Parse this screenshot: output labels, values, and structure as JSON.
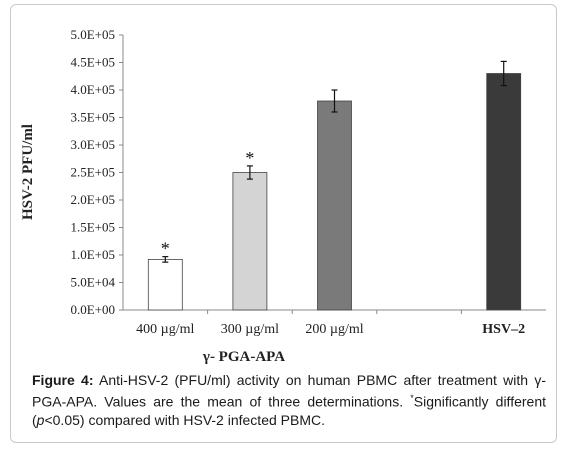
{
  "chart_data": {
    "type": "bar",
    "ylabel": "HSV-2 PFU/ml",
    "xlabel": "γ- PGA-APA",
    "ylim": [
      0,
      500000
    ],
    "yticks": [
      "0.0E+00",
      "5.0E+04",
      "1.0E+05",
      "1.5E+05",
      "2.0E+05",
      "2.5E+05",
      "3.0E+05",
      "3.5E+05",
      "4.0E+05",
      "4.5E+05",
      "5.0E+05"
    ],
    "ytick_values": [
      0,
      50000,
      100000,
      150000,
      200000,
      250000,
      300000,
      350000,
      400000,
      450000,
      500000
    ],
    "categories": [
      "400 µg/ml",
      "300 µg/ml",
      "200 µg/ml",
      "",
      "HSV–2"
    ],
    "values": [
      92000,
      250000,
      380000,
      null,
      430000
    ],
    "errors": [
      5000,
      12000,
      20000,
      null,
      22000
    ],
    "significance": [
      "*",
      "*",
      "",
      "",
      ""
    ],
    "colors": [
      "#ffffff",
      "#d4d4d4",
      "#7a7a7a",
      "",
      "#3a3a3a"
    ],
    "grid": false,
    "legend": "none"
  },
  "caption": {
    "label": "Figure 4:",
    "text_before_symbol": " Anti-HSV-2 (PFU/ml) activity on human PBMC after treatment with ",
    "symbol": "γ",
    "text_after_symbol": "-PGA-APA. Values are the mean of three determinations. ",
    "footnote_mark": "*",
    "text_significance": "Significantly different (",
    "p_italic": "p",
    "text_end": "<0.05) compared with HSV-2 infected PBMC."
  }
}
